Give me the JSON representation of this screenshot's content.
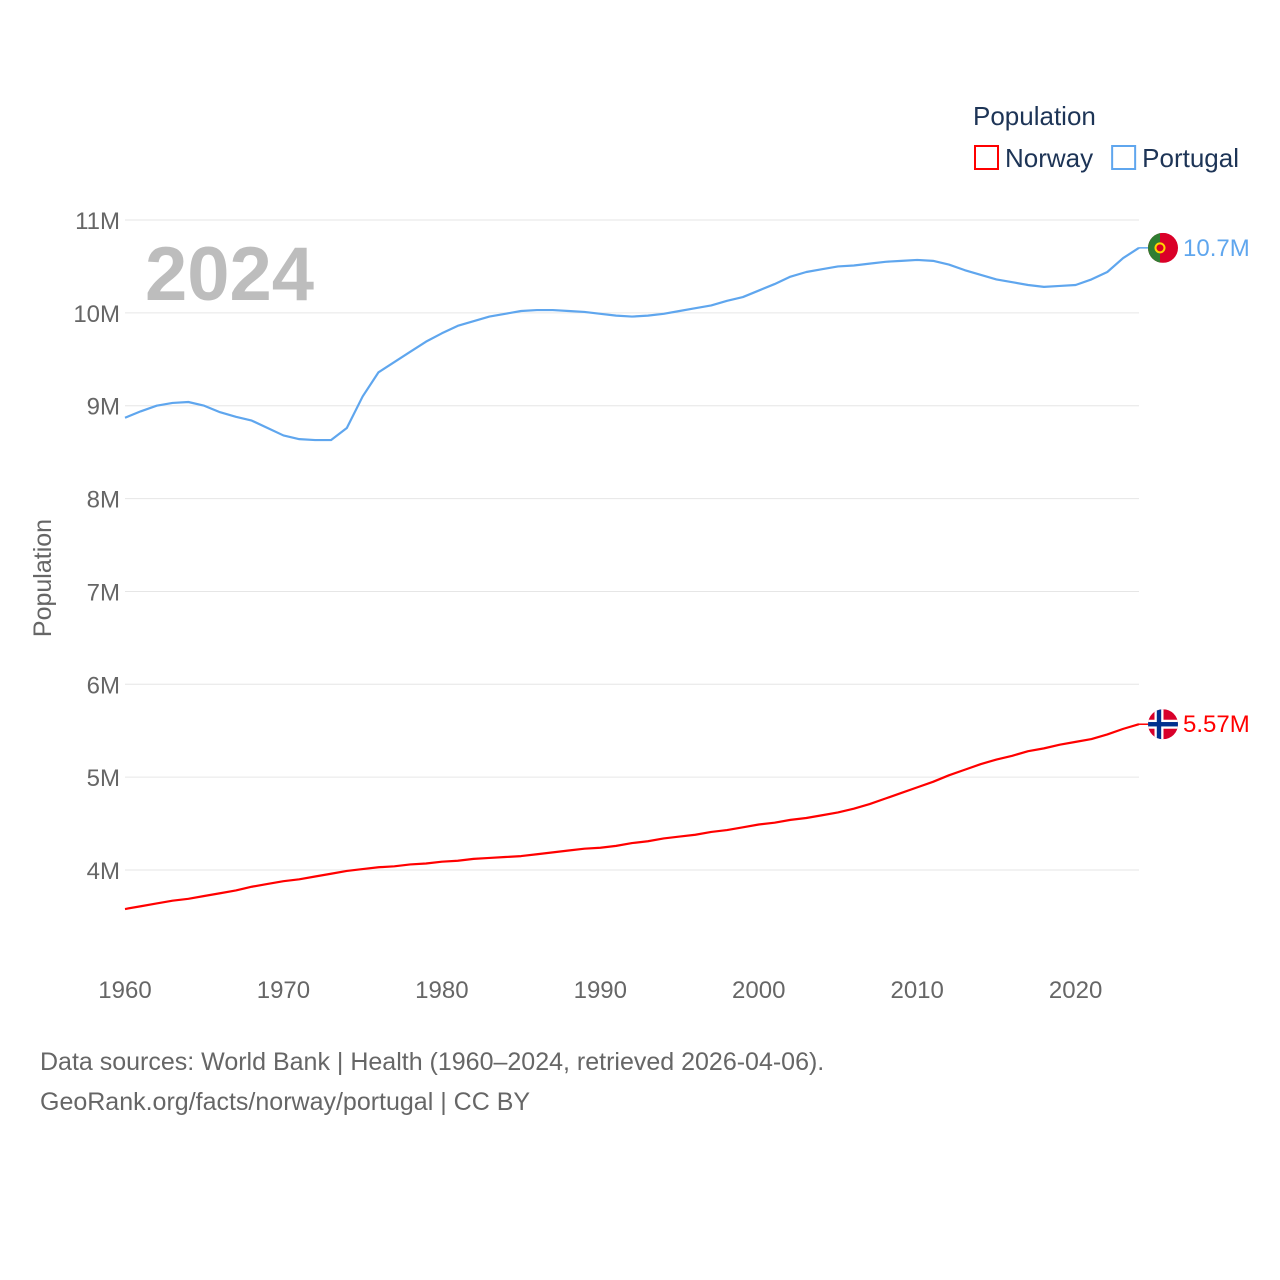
{
  "chart_data": {
    "type": "line",
    "title": "Population",
    "year_label": "2024",
    "ylabel": "Population",
    "xlabel": "",
    "ylim": [
      3.3,
      11
    ],
    "xlim": [
      1960,
      2024
    ],
    "y_ticks": [
      {
        "value": 11,
        "label": "11M"
      },
      {
        "value": 10,
        "label": "10M"
      },
      {
        "value": 9,
        "label": "9M"
      },
      {
        "value": 8,
        "label": "8M"
      },
      {
        "value": 7,
        "label": "7M"
      },
      {
        "value": 6,
        "label": "6M"
      },
      {
        "value": 5,
        "label": "5M"
      },
      {
        "value": 4,
        "label": "4M"
      }
    ],
    "x_ticks": [
      {
        "value": 1960,
        "label": "1960"
      },
      {
        "value": 1970,
        "label": "1970"
      },
      {
        "value": 1980,
        "label": "1980"
      },
      {
        "value": 1990,
        "label": "1990"
      },
      {
        "value": 2000,
        "label": "2000"
      },
      {
        "value": 2010,
        "label": "2010"
      },
      {
        "value": 2020,
        "label": "2020"
      }
    ],
    "grid": true,
    "legend_position": "top-right",
    "x_start": 1960,
    "series": [
      {
        "name": "Norway",
        "color": "#ff0000",
        "end_label": "5.57M",
        "flag": "norway-flag",
        "values": [
          3.58,
          3.61,
          3.64,
          3.67,
          3.69,
          3.72,
          3.75,
          3.78,
          3.82,
          3.85,
          3.88,
          3.9,
          3.93,
          3.96,
          3.99,
          4.01,
          4.03,
          4.04,
          4.06,
          4.07,
          4.09,
          4.1,
          4.12,
          4.13,
          4.14,
          4.15,
          4.17,
          4.19,
          4.21,
          4.23,
          4.24,
          4.26,
          4.29,
          4.31,
          4.34,
          4.36,
          4.38,
          4.41,
          4.43,
          4.46,
          4.49,
          4.51,
          4.54,
          4.56,
          4.59,
          4.62,
          4.66,
          4.71,
          4.77,
          4.83,
          4.89,
          4.95,
          5.02,
          5.08,
          5.14,
          5.19,
          5.23,
          5.28,
          5.31,
          5.35,
          5.38,
          5.41,
          5.46,
          5.52,
          5.57
        ]
      },
      {
        "name": "Portugal",
        "color": "#5fa6ee",
        "end_label": "10.7M",
        "flag": "portugal-flag",
        "values": [
          8.87,
          8.94,
          9.0,
          9.03,
          9.04,
          9.0,
          8.93,
          8.88,
          8.84,
          8.76,
          8.68,
          8.64,
          8.63,
          8.63,
          8.76,
          9.1,
          9.36,
          9.47,
          9.58,
          9.69,
          9.78,
          9.86,
          9.91,
          9.96,
          9.99,
          10.02,
          10.03,
          10.03,
          10.02,
          10.01,
          9.99,
          9.97,
          9.96,
          9.97,
          9.99,
          10.02,
          10.05,
          10.08,
          10.13,
          10.17,
          10.24,
          10.31,
          10.39,
          10.44,
          10.47,
          10.5,
          10.51,
          10.53,
          10.55,
          10.56,
          10.57,
          10.56,
          10.52,
          10.46,
          10.41,
          10.36,
          10.33,
          10.3,
          10.28,
          10.29,
          10.3,
          10.36,
          10.44,
          10.59,
          10.7
        ]
      }
    ]
  },
  "footer": {
    "line1": "Data sources: World Bank | Health (1960–2024, retrieved 2026-04-06).",
    "line2": "GeoRank.org/facts/norway/portugal | CC BY"
  }
}
